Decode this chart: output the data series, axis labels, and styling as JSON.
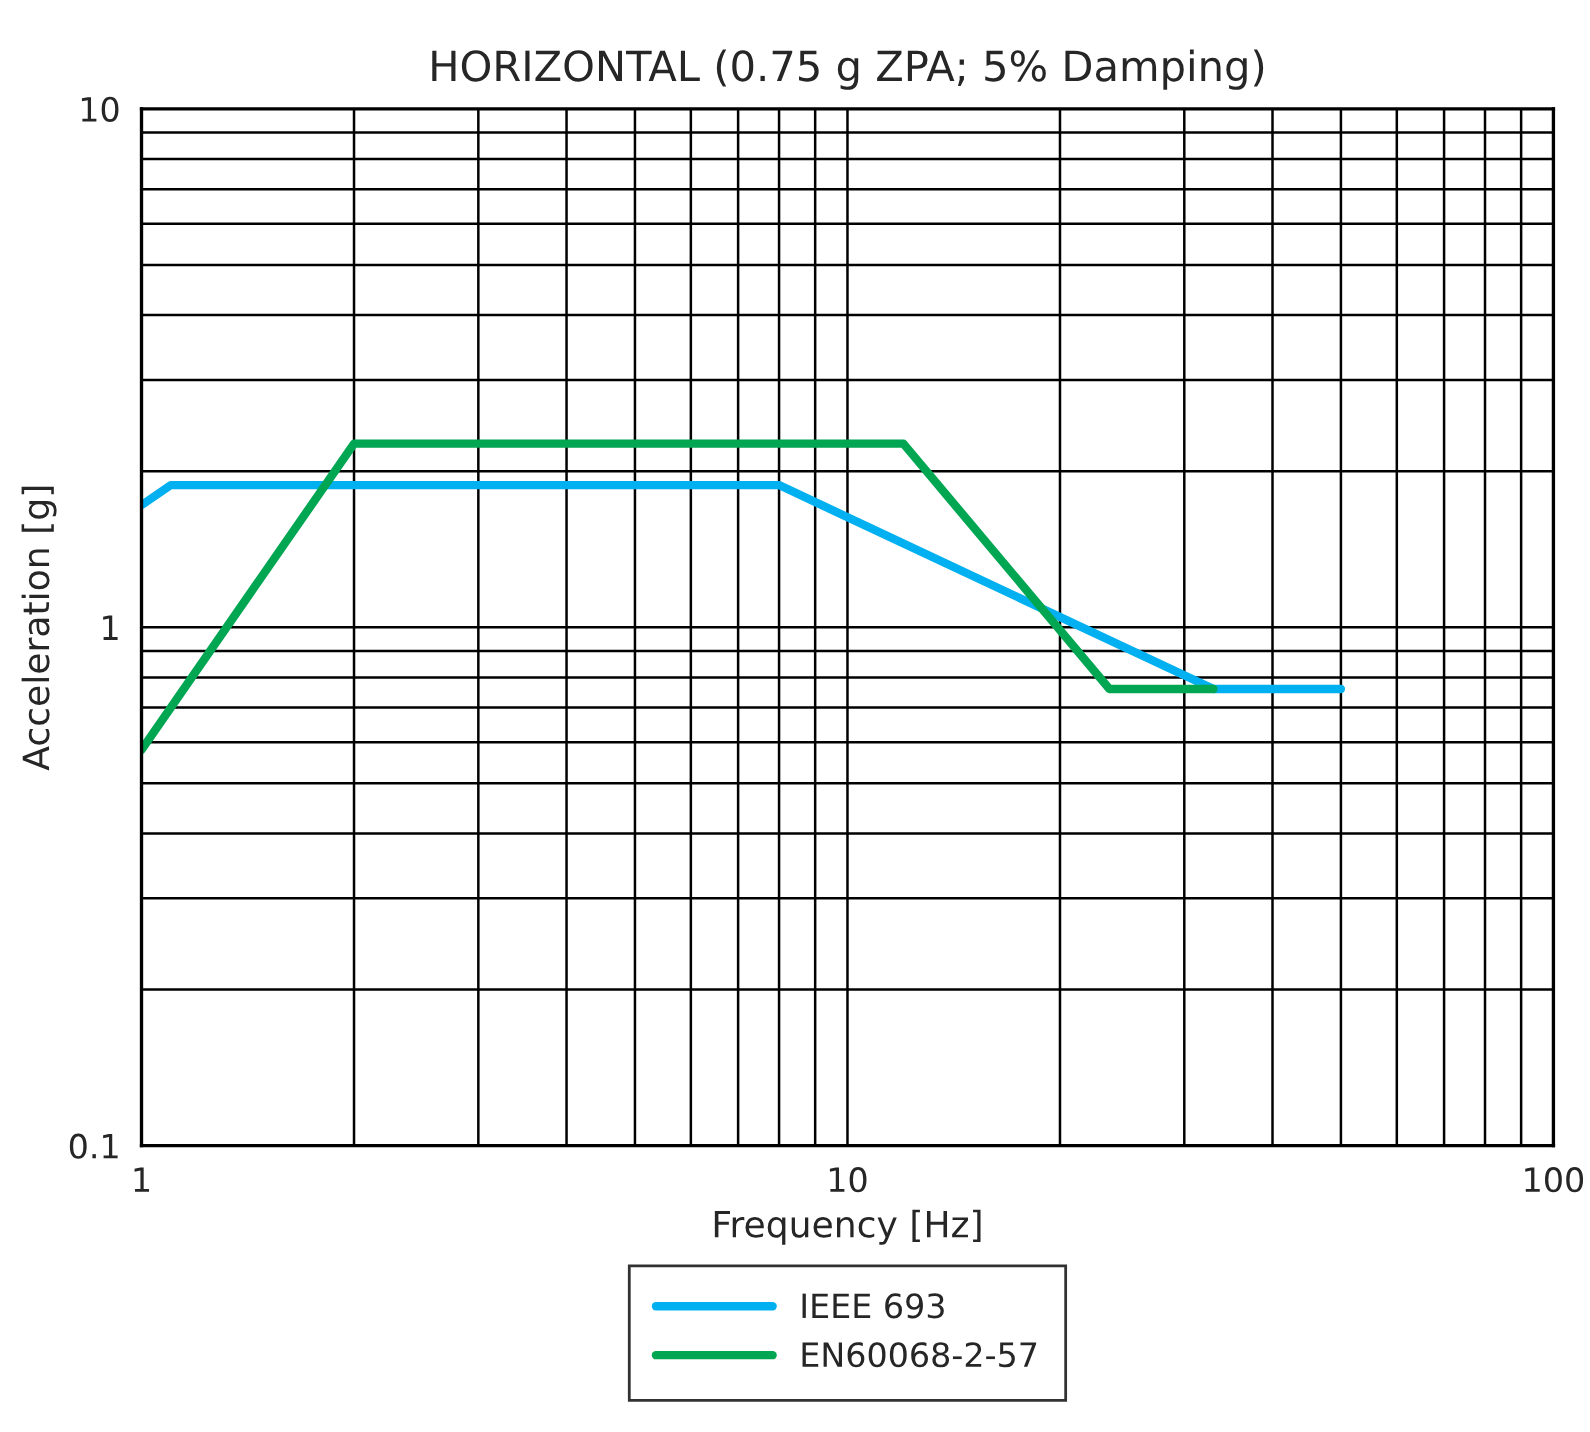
{
  "chart_data": {
    "type": "line",
    "title": "HORIZONTAL (0.75 g ZPA; 5% Damping)",
    "xlabel": "Frequency [Hz]",
    "ylabel": "Acceleration [g]",
    "series": [
      {
        "name": "IEEE 693",
        "color": "#00b0f0",
        "x": [
          1,
          1.1,
          8,
          33,
          50
        ],
        "values": [
          1.72,
          1.88,
          1.88,
          0.76,
          0.76
        ]
      },
      {
        "name": "EN60068-2-57",
        "color": "#00a651",
        "x": [
          1,
          2,
          12,
          23.5,
          33
        ],
        "values": [
          0.58,
          2.26,
          2.26,
          0.76,
          0.76
        ]
      }
    ],
    "log": "xy",
    "xlim": [
      1,
      100
    ],
    "ylim": [
      0.1,
      10
    ],
    "xticks": [
      1,
      10,
      100
    ],
    "yticks": [
      0.1,
      1,
      10
    ],
    "grid": true,
    "legend": "bottom",
    "marker": "none",
    "line_style": "solid"
  }
}
